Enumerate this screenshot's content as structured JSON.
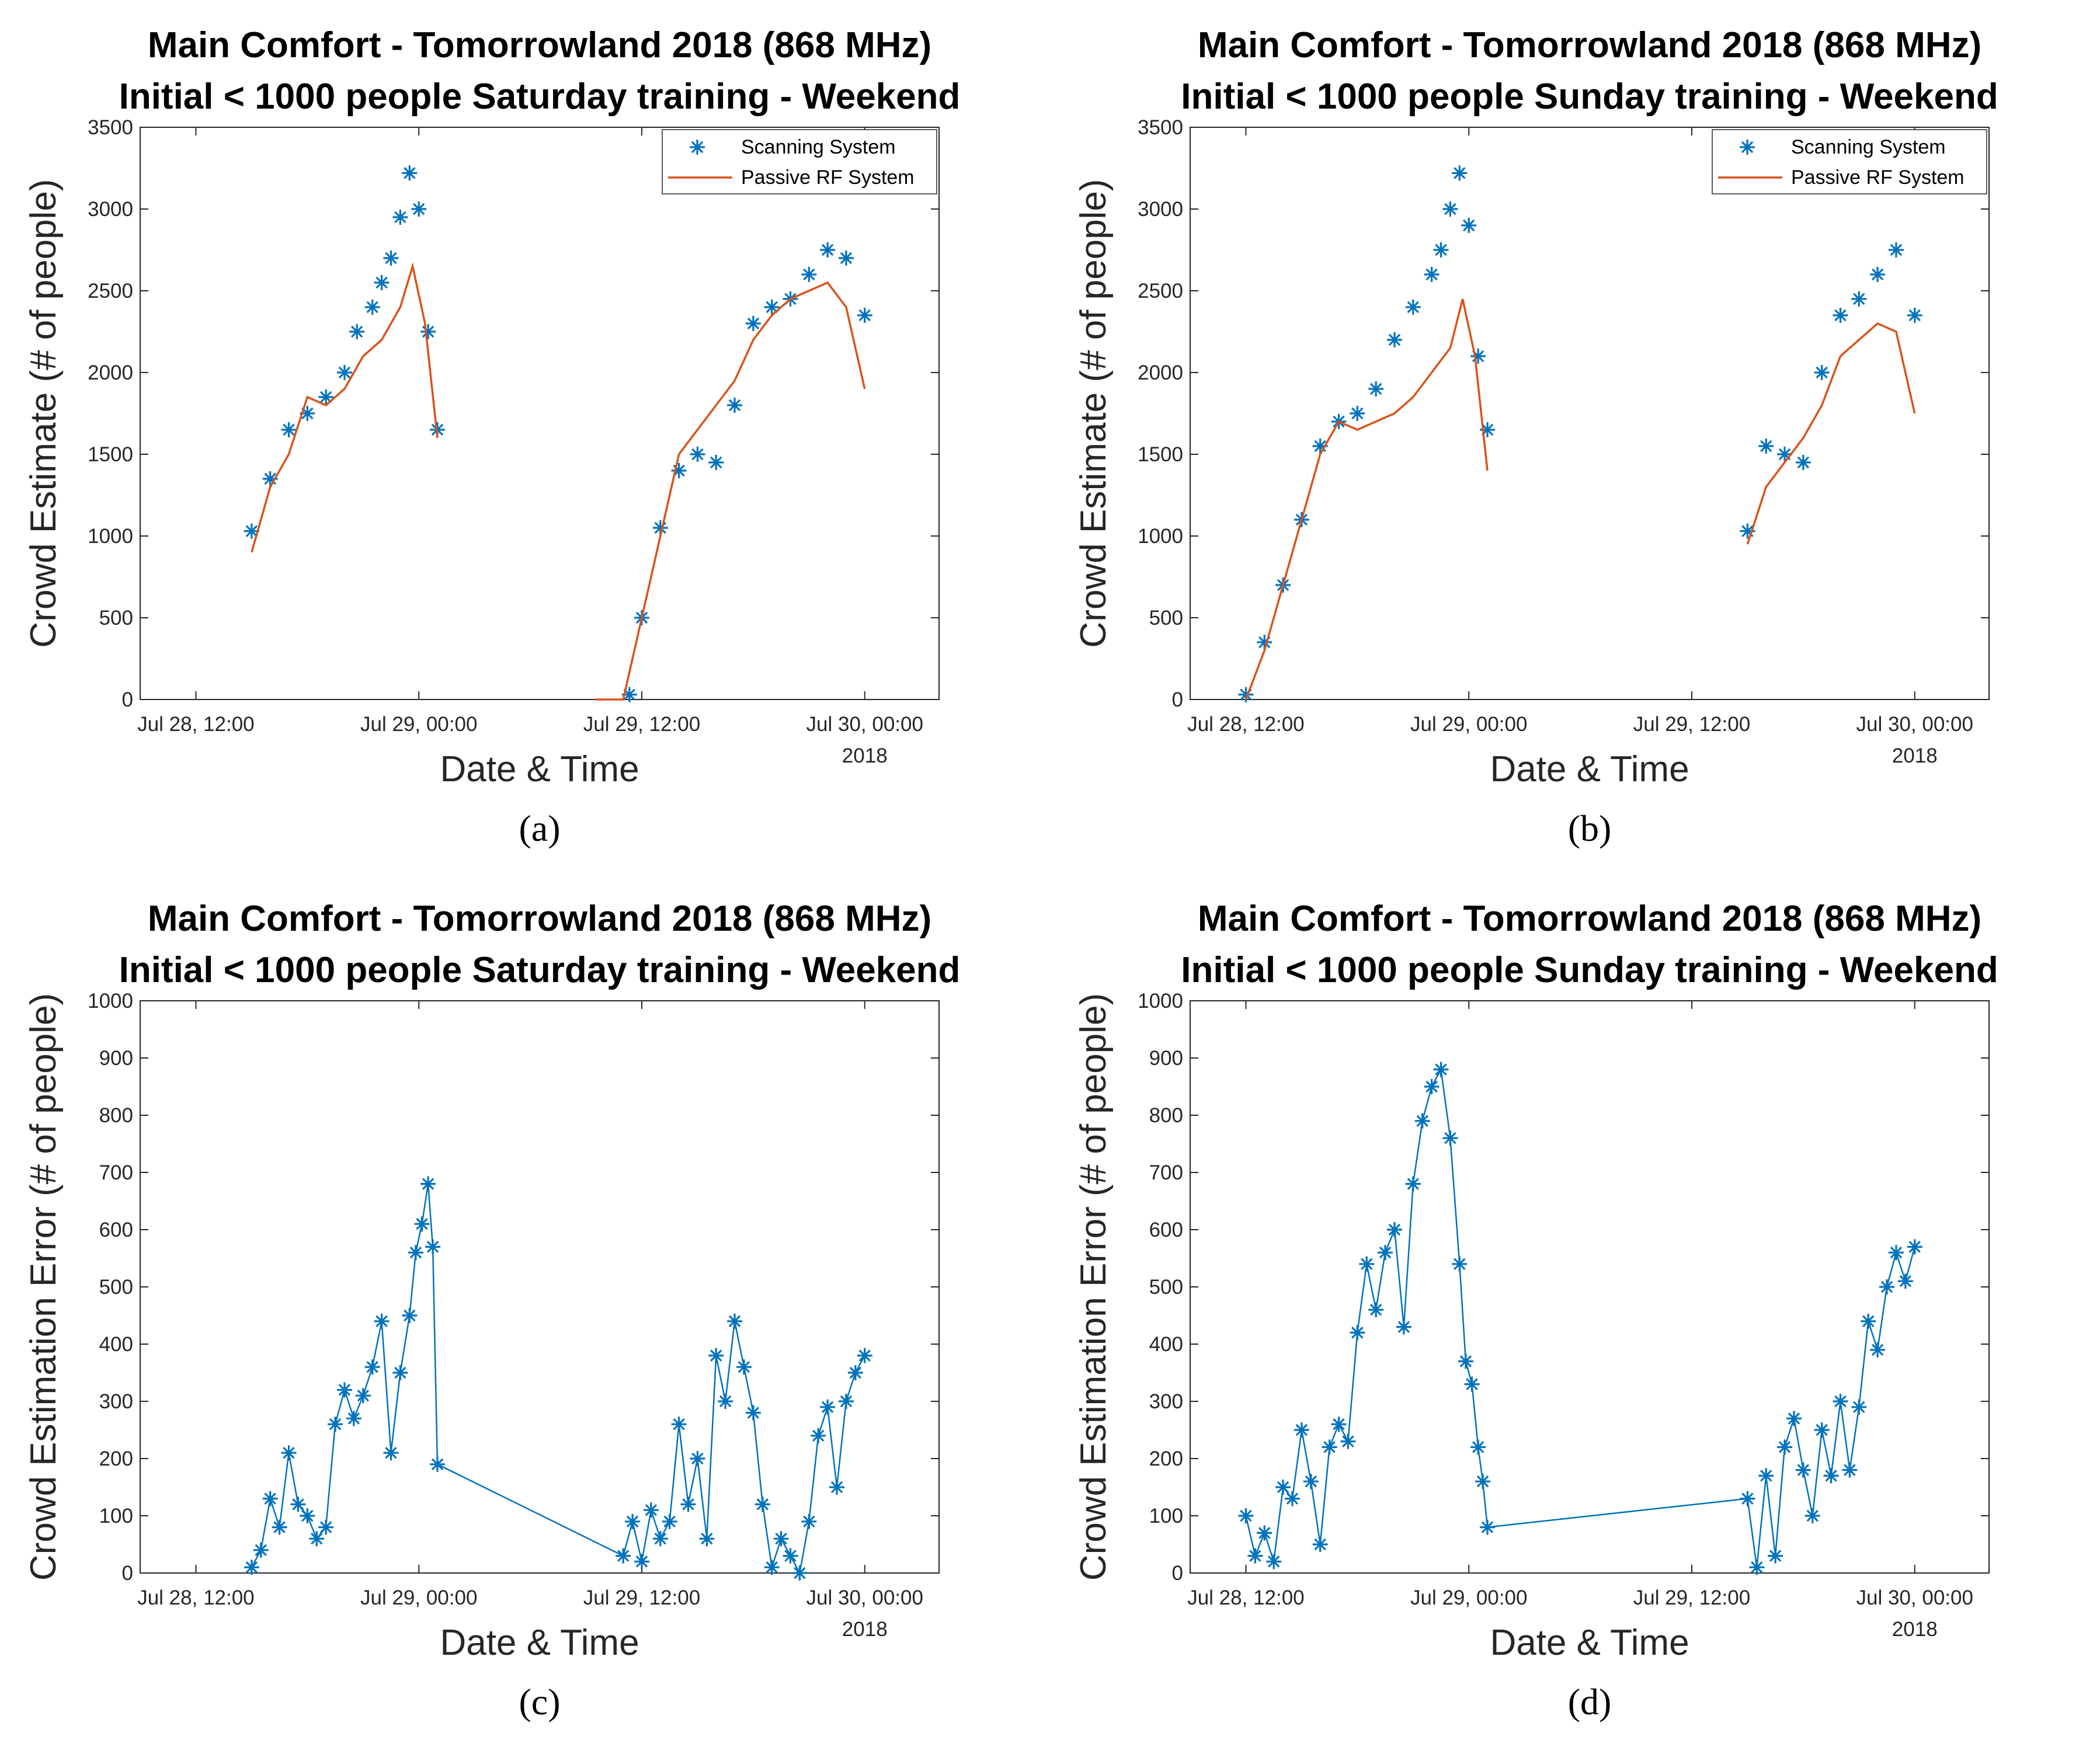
{
  "colors": {
    "scanning": "#0072BD",
    "passive": "#D95319",
    "axis": "#262626"
  },
  "chart_data": [
    {
      "panel": "a",
      "caption": "(a)",
      "type": "line",
      "title": [
        "Main Comfort - Tomorrowland 2018 (868 MHz)",
        "Initial < 1000 people Saturday training - Weekend"
      ],
      "xlabel": "Date & Time",
      "ylabel": "Crowd Estimate (# of people)",
      "xlim": [
        "2018-07-28 09:00",
        "2018-07-30 04:00"
      ],
      "x_ticks": [
        "Jul 28, 12:00",
        "Jul 29, 00:00",
        "Jul 29, 12:00",
        "Jul 30, 00:00"
      ],
      "x_tick_positions": [
        "2018-07-28 12:00",
        "2018-07-29 00:00",
        "2018-07-29 12:00",
        "2018-07-30 00:00"
      ],
      "x_year": "2018",
      "ylim": [
        0,
        3500
      ],
      "y_ticks": [
        0,
        500,
        1000,
        1500,
        2000,
        2500,
        3000,
        3500
      ],
      "legend": {
        "position": "top-right",
        "entries": [
          "Scanning System",
          "Passive RF System"
        ]
      },
      "grid": false,
      "series": [
        {
          "name": "Scanning System",
          "style": "markers-star",
          "color": "#0072BD",
          "x": [
            "2018-07-28 15:00",
            "2018-07-28 16:00",
            "2018-07-28 17:00",
            "2018-07-28 18:00",
            "2018-07-28 19:00",
            "2018-07-28 20:00",
            "2018-07-28 20:40",
            "2018-07-28 21:30",
            "2018-07-28 22:00",
            "2018-07-28 22:30",
            "2018-07-28 23:00",
            "2018-07-28 23:30",
            "2018-07-29 00:00",
            "2018-07-29 00:30",
            "2018-07-29 01:00",
            "2018-07-29 11:20",
            "2018-07-29 12:00",
            "2018-07-29 13:00",
            "2018-07-29 14:00",
            "2018-07-29 15:00",
            "2018-07-29 16:00",
            "2018-07-29 17:00",
            "2018-07-29 18:00",
            "2018-07-29 19:00",
            "2018-07-29 20:00",
            "2018-07-29 21:00",
            "2018-07-29 22:00",
            "2018-07-29 23:00",
            "2018-07-30 00:00"
          ],
          "y": [
            1030,
            1350,
            1650,
            1750,
            1850,
            2000,
            2250,
            2400,
            2550,
            2700,
            2950,
            3220,
            3000,
            2250,
            1650,
            30,
            500,
            1050,
            1400,
            1500,
            1450,
            1800,
            2300,
            2400,
            2450,
            2600,
            2750,
            2700,
            2350
          ]
        },
        {
          "name": "Passive RF System",
          "style": "line",
          "color": "#D95319",
          "x": [
            "2018-07-28 15:00",
            "2018-07-28 16:00",
            "2018-07-28 17:00",
            "2018-07-28 18:00",
            "2018-07-28 19:00",
            "2018-07-28 20:00",
            "2018-07-28 21:00",
            "2018-07-28 22:00",
            "2018-07-28 23:00",
            "2018-07-28 23:40",
            "2018-07-29 00:20",
            "2018-07-29 01:00",
            "2018-07-29 09:30",
            "2018-07-29 11:00",
            "2018-07-29 12:00",
            "2018-07-29 13:00",
            "2018-07-29 14:00",
            "2018-07-29 15:00",
            "2018-07-29 16:00",
            "2018-07-29 17:00",
            "2018-07-29 18:00",
            "2018-07-29 19:00",
            "2018-07-29 20:00",
            "2018-07-29 21:00",
            "2018-07-29 22:00",
            "2018-07-29 23:00",
            "2018-07-30 00:00"
          ],
          "y": [
            900,
            1300,
            1500,
            1850,
            1800,
            1900,
            2100,
            2200,
            2400,
            2650,
            2300,
            1600,
            0,
            0,
            500,
            1000,
            1500,
            1650,
            1800,
            1950,
            2200,
            2350,
            2450,
            2500,
            2550,
            2400,
            1900
          ]
        }
      ]
    },
    {
      "panel": "b",
      "caption": "(b)",
      "type": "line",
      "title": [
        "Main Comfort - Tomorrowland 2018 (868 MHz)",
        "Initial < 1000 people Sunday training - Weekend"
      ],
      "xlabel": "Date & Time",
      "ylabel": "Crowd Estimate (# of people)",
      "xlim": [
        "2018-07-28 09:00",
        "2018-07-30 04:00"
      ],
      "x_ticks": [
        "Jul 28, 12:00",
        "Jul 29, 00:00",
        "Jul 29, 12:00",
        "Jul 30, 00:00"
      ],
      "x_tick_positions": [
        "2018-07-28 12:00",
        "2018-07-29 00:00",
        "2018-07-29 12:00",
        "2018-07-30 00:00"
      ],
      "x_year": "2018",
      "ylim": [
        0,
        3500
      ],
      "y_ticks": [
        0,
        500,
        1000,
        1500,
        2000,
        2500,
        3000,
        3500
      ],
      "legend": {
        "position": "top-right",
        "entries": [
          "Scanning System",
          "Passive RF System"
        ]
      },
      "grid": false,
      "series": [
        {
          "name": "Scanning System",
          "style": "markers-star",
          "color": "#0072BD",
          "x": [
            "2018-07-28 12:00",
            "2018-07-28 13:00",
            "2018-07-28 14:00",
            "2018-07-28 15:00",
            "2018-07-28 16:00",
            "2018-07-28 17:00",
            "2018-07-28 18:00",
            "2018-07-28 19:00",
            "2018-07-28 20:00",
            "2018-07-28 21:00",
            "2018-07-28 22:00",
            "2018-07-28 22:30",
            "2018-07-28 23:00",
            "2018-07-28 23:30",
            "2018-07-29 00:00",
            "2018-07-29 00:30",
            "2018-07-29 01:00",
            "2018-07-29 15:00",
            "2018-07-29 16:00",
            "2018-07-29 17:00",
            "2018-07-29 18:00",
            "2018-07-29 19:00",
            "2018-07-29 20:00",
            "2018-07-29 21:00",
            "2018-07-29 22:00",
            "2018-07-29 23:00",
            "2018-07-30 00:00"
          ],
          "y": [
            30,
            350,
            700,
            1100,
            1550,
            1700,
            1750,
            1900,
            2200,
            2400,
            2600,
            2750,
            3000,
            3220,
            2900,
            2100,
            1650,
            1030,
            1550,
            1500,
            1450,
            2000,
            2350,
            2450,
            2600,
            2750,
            2350
          ]
        },
        {
          "name": "Passive RF System",
          "style": "line",
          "color": "#D95319",
          "x": [
            "2018-07-28 12:00",
            "2018-07-28 13:00",
            "2018-07-28 14:00",
            "2018-07-28 15:00",
            "2018-07-28 16:00",
            "2018-07-28 17:00",
            "2018-07-28 18:00",
            "2018-07-28 19:00",
            "2018-07-28 20:00",
            "2018-07-28 21:00",
            "2018-07-28 22:00",
            "2018-07-28 23:00",
            "2018-07-28 23:40",
            "2018-07-29 00:20",
            "2018-07-29 01:00",
            "2018-07-29 15:00",
            "2018-07-29 16:00",
            "2018-07-29 17:00",
            "2018-07-29 18:00",
            "2018-07-29 19:00",
            "2018-07-29 20:00",
            "2018-07-29 21:00",
            "2018-07-29 22:00",
            "2018-07-29 23:00",
            "2018-07-30 00:00"
          ],
          "y": [
            0,
            300,
            700,
            1100,
            1500,
            1700,
            1650,
            1700,
            1750,
            1850,
            2000,
            2150,
            2450,
            2100,
            1400,
            950,
            1300,
            1450,
            1600,
            1800,
            2100,
            2200,
            2300,
            2250,
            1750
          ]
        }
      ]
    },
    {
      "panel": "c",
      "caption": "(c)",
      "type": "line",
      "title": [
        "Main Comfort - Tomorrowland 2018 (868 MHz)",
        "Initial < 1000 people Saturday training - Weekend"
      ],
      "xlabel": "Date & Time",
      "ylabel": "Crowd Estimation Error (# of people)",
      "xlim": [
        "2018-07-28 09:00",
        "2018-07-30 04:00"
      ],
      "x_ticks": [
        "Jul 28, 12:00",
        "Jul 29, 00:00",
        "Jul 29, 12:00",
        "Jul 30, 00:00"
      ],
      "x_tick_positions": [
        "2018-07-28 12:00",
        "2018-07-29 00:00",
        "2018-07-29 12:00",
        "2018-07-30 00:00"
      ],
      "x_year": "2018",
      "ylim": [
        0,
        1000
      ],
      "y_ticks": [
        0,
        100,
        200,
        300,
        400,
        500,
        600,
        700,
        800,
        900,
        1000
      ],
      "grid": false,
      "series": [
        {
          "style": "line-markers-star",
          "color": "#0072BD",
          "x": [
            "2018-07-28 15:00",
            "2018-07-28 15:30",
            "2018-07-28 16:00",
            "2018-07-28 16:30",
            "2018-07-28 17:00",
            "2018-07-28 17:30",
            "2018-07-28 18:00",
            "2018-07-28 18:30",
            "2018-07-28 19:00",
            "2018-07-28 19:30",
            "2018-07-28 20:00",
            "2018-07-28 20:30",
            "2018-07-28 21:00",
            "2018-07-28 21:30",
            "2018-07-28 22:00",
            "2018-07-28 22:30",
            "2018-07-28 23:00",
            "2018-07-28 23:30",
            "2018-07-28 23:50",
            "2018-07-29 00:10",
            "2018-07-29 00:30",
            "2018-07-29 00:45",
            "2018-07-29 01:00",
            "2018-07-29 11:00",
            "2018-07-29 11:30",
            "2018-07-29 12:00",
            "2018-07-29 12:30",
            "2018-07-29 13:00",
            "2018-07-29 13:30",
            "2018-07-29 14:00",
            "2018-07-29 14:30",
            "2018-07-29 15:00",
            "2018-07-29 15:30",
            "2018-07-29 16:00",
            "2018-07-29 16:30",
            "2018-07-29 17:00",
            "2018-07-29 17:30",
            "2018-07-29 18:00",
            "2018-07-29 18:30",
            "2018-07-29 19:00",
            "2018-07-29 19:30",
            "2018-07-29 20:00",
            "2018-07-29 20:30",
            "2018-07-29 21:00",
            "2018-07-29 21:30",
            "2018-07-29 22:00",
            "2018-07-29 22:30",
            "2018-07-29 23:00",
            "2018-07-29 23:30",
            "2018-07-30 00:00"
          ],
          "y": [
            10,
            40,
            130,
            80,
            210,
            120,
            100,
            60,
            80,
            260,
            320,
            270,
            310,
            360,
            440,
            210,
            350,
            450,
            560,
            610,
            680,
            570,
            190,
            30,
            90,
            20,
            110,
            60,
            90,
            260,
            120,
            200,
            60,
            380,
            300,
            440,
            360,
            280,
            120,
            10,
            60,
            30,
            0,
            90,
            240,
            290,
            150,
            300,
            350,
            380
          ]
        }
      ]
    },
    {
      "panel": "d",
      "caption": "(d)",
      "type": "line",
      "title": [
        "Main Comfort - Tomorrowland 2018 (868 MHz)",
        "Initial < 1000 people Sunday training - Weekend"
      ],
      "xlabel": "Date & Time",
      "ylabel": "Crowd Estimation Error (# of people)",
      "xlim": [
        "2018-07-28 09:00",
        "2018-07-30 04:00"
      ],
      "x_ticks": [
        "Jul 28, 12:00",
        "Jul 29, 00:00",
        "Jul 29, 12:00",
        "Jul 30, 00:00"
      ],
      "x_tick_positions": [
        "2018-07-28 12:00",
        "2018-07-29 00:00",
        "2018-07-29 12:00",
        "2018-07-30 00:00"
      ],
      "x_year": "2018",
      "ylim": [
        0,
        1000
      ],
      "y_ticks": [
        0,
        100,
        200,
        300,
        400,
        500,
        600,
        700,
        800,
        900,
        1000
      ],
      "grid": false,
      "series": [
        {
          "style": "line-markers-star",
          "color": "#0072BD",
          "x": [
            "2018-07-28 12:00",
            "2018-07-28 12:30",
            "2018-07-28 13:00",
            "2018-07-28 13:30",
            "2018-07-28 14:00",
            "2018-07-28 14:30",
            "2018-07-28 15:00",
            "2018-07-28 15:30",
            "2018-07-28 16:00",
            "2018-07-28 16:30",
            "2018-07-28 17:00",
            "2018-07-28 17:30",
            "2018-07-28 18:00",
            "2018-07-28 18:30",
            "2018-07-28 19:00",
            "2018-07-28 19:30",
            "2018-07-28 20:00",
            "2018-07-28 20:30",
            "2018-07-28 21:00",
            "2018-07-28 21:30",
            "2018-07-28 22:00",
            "2018-07-28 22:30",
            "2018-07-28 23:00",
            "2018-07-28 23:30",
            "2018-07-28 23:50",
            "2018-07-29 00:10",
            "2018-07-29 00:30",
            "2018-07-29 00:45",
            "2018-07-29 01:00",
            "2018-07-29 15:00",
            "2018-07-29 15:30",
            "2018-07-29 16:00",
            "2018-07-29 16:30",
            "2018-07-29 17:00",
            "2018-07-29 17:30",
            "2018-07-29 18:00",
            "2018-07-29 18:30",
            "2018-07-29 19:00",
            "2018-07-29 19:30",
            "2018-07-29 20:00",
            "2018-07-29 20:30",
            "2018-07-29 21:00",
            "2018-07-29 21:30",
            "2018-07-29 22:00",
            "2018-07-29 22:30",
            "2018-07-29 23:00",
            "2018-07-29 23:30",
            "2018-07-30 00:00"
          ],
          "y": [
            100,
            30,
            70,
            20,
            150,
            130,
            250,
            160,
            50,
            220,
            260,
            230,
            420,
            540,
            460,
            560,
            600,
            430,
            680,
            790,
            850,
            880,
            760,
            540,
            370,
            330,
            220,
            160,
            80,
            130,
            10,
            170,
            30,
            220,
            270,
            180,
            100,
            250,
            170,
            300,
            180,
            290,
            440,
            390,
            500,
            560,
            510,
            570
          ]
        }
      ]
    }
  ]
}
